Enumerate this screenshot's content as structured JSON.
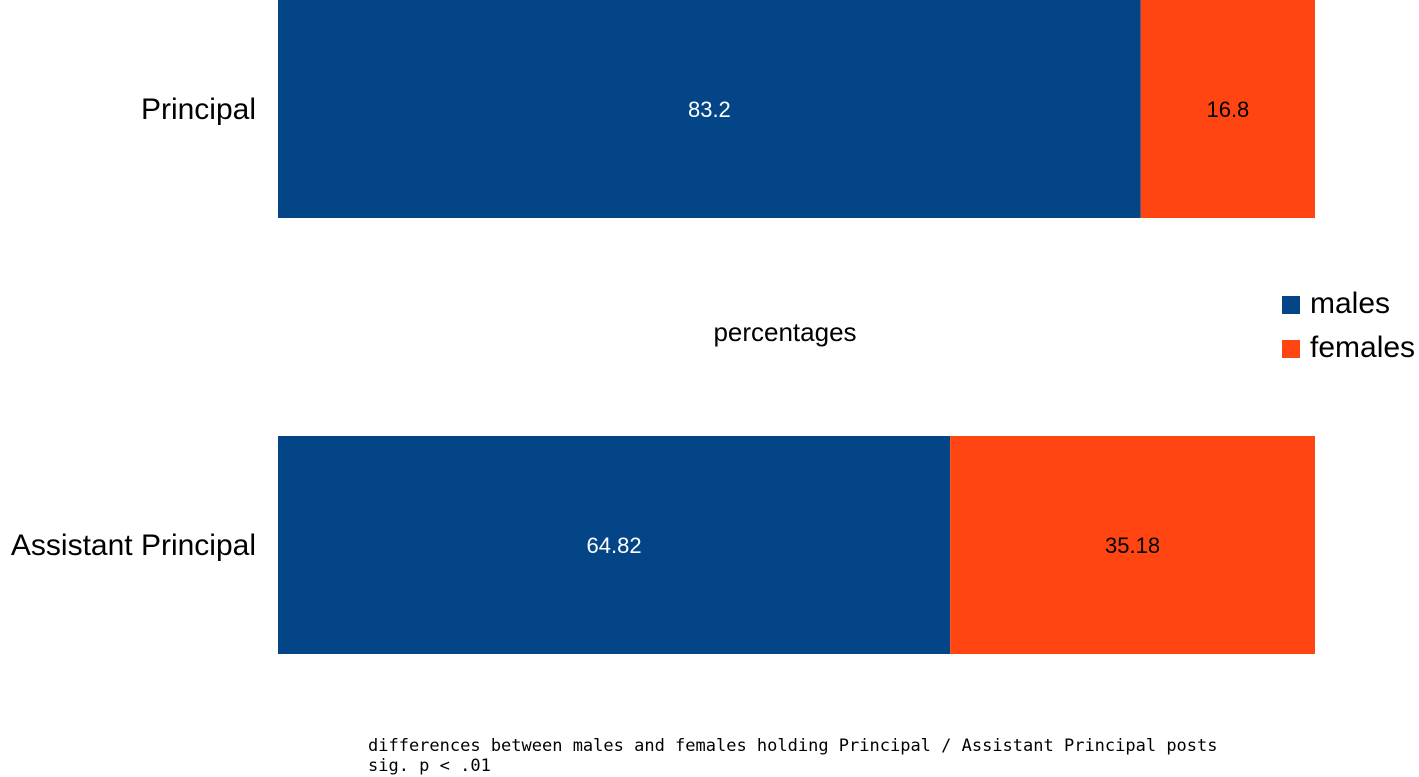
{
  "chart_data": {
    "type": "bar",
    "orientation": "horizontal",
    "stacked": true,
    "categories": [
      "Principal",
      "Assistant Principal"
    ],
    "series": [
      {
        "name": "males",
        "values": [
          83.2,
          64.82
        ],
        "color": "#034587",
        "label_color": "#ffffff"
      },
      {
        "name": "females",
        "values": [
          16.8,
          35.18
        ],
        "color": "#ff4511",
        "label_color": "#000000"
      }
    ],
    "xlabel": "percentages",
    "xlim": [
      0,
      100
    ],
    "grid": false,
    "legend_position": "right"
  },
  "caption": {
    "line1": "differences between males and females holding Principal / Assistant Principal posts",
    "line2": "sig. p < .01"
  }
}
